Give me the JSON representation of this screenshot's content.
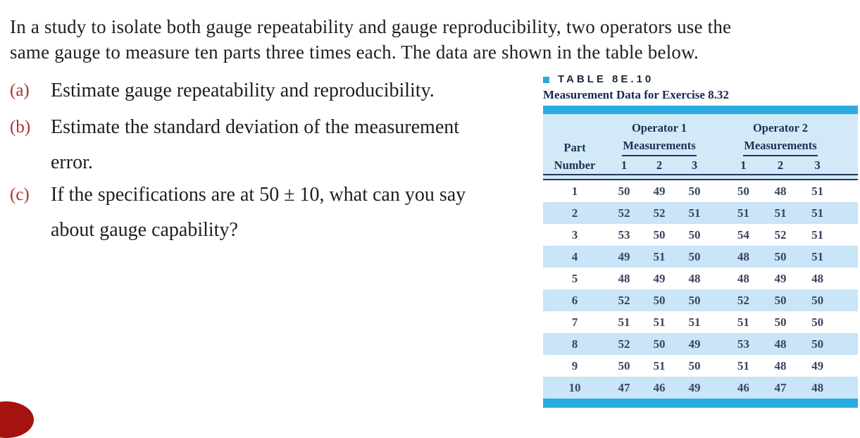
{
  "intro": {
    "line1": "In a study to isolate both gauge repeatability and gauge reproducibility, two operators use the",
    "line2": "same gauge to measure ten parts three times each. The data are shown in the table below."
  },
  "questions": [
    {
      "marker": "(a)",
      "lines": [
        "Estimate gauge repeatability and reproducibility."
      ]
    },
    {
      "marker": "(b)",
      "lines": [
        "Estimate the standard deviation of the measurement",
        "error."
      ]
    },
    {
      "marker": "(c)",
      "lines": [
        "If the specifications are at 50 ± 10, what can you say",
        "about gauge capability?"
      ]
    }
  ],
  "table": {
    "label": "TABLE 8E.10",
    "caption": "Measurement Data for Exercise 8.32",
    "header": {
      "part_col": [
        "Part",
        "Number"
      ],
      "groups": [
        {
          "title": "Operator 1",
          "subtitle": "Measurements",
          "cols": [
            "1",
            "2",
            "3"
          ]
        },
        {
          "title": "Operator 2",
          "subtitle": "Measurements",
          "cols": [
            "1",
            "2",
            "3"
          ]
        }
      ]
    },
    "rows": [
      {
        "part": "1",
        "op1": [
          "50",
          "49",
          "50"
        ],
        "op2": [
          "50",
          "48",
          "51"
        ]
      },
      {
        "part": "2",
        "op1": [
          "52",
          "52",
          "51"
        ],
        "op2": [
          "51",
          "51",
          "51"
        ]
      },
      {
        "part": "3",
        "op1": [
          "53",
          "50",
          "50"
        ],
        "op2": [
          "54",
          "52",
          "51"
        ]
      },
      {
        "part": "4",
        "op1": [
          "49",
          "51",
          "50"
        ],
        "op2": [
          "48",
          "50",
          "51"
        ]
      },
      {
        "part": "5",
        "op1": [
          "48",
          "49",
          "48"
        ],
        "op2": [
          "48",
          "49",
          "48"
        ]
      },
      {
        "part": "6",
        "op1": [
          "52",
          "50",
          "50"
        ],
        "op2": [
          "52",
          "50",
          "50"
        ]
      },
      {
        "part": "7",
        "op1": [
          "51",
          "51",
          "51"
        ],
        "op2": [
          "51",
          "50",
          "50"
        ]
      },
      {
        "part": "8",
        "op1": [
          "52",
          "50",
          "49"
        ],
        "op2": [
          "53",
          "48",
          "50"
        ]
      },
      {
        "part": "9",
        "op1": [
          "50",
          "51",
          "50"
        ],
        "op2": [
          "51",
          "48",
          "49"
        ]
      },
      {
        "part": "10",
        "op1": [
          "47",
          "46",
          "49"
        ],
        "op2": [
          "46",
          "47",
          "48"
        ]
      }
    ]
  },
  "colors": {
    "accent_blue": "#29abe2",
    "table_bg": "#d2e9f8",
    "row_stripe": "#c9e5f7",
    "header_text": "#1b2f55",
    "data_text": "#3c4460",
    "marker_red": "#a8352c",
    "circle_red": "#a51310",
    "body_text": "#1e1e1e"
  }
}
